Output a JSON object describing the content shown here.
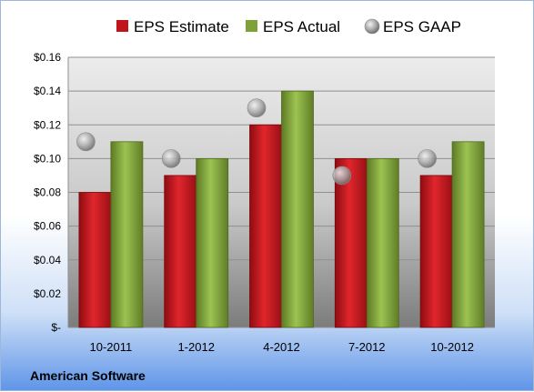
{
  "chart_data": {
    "type": "bar",
    "title": "",
    "xlabel": "",
    "ylabel": "",
    "categories": [
      "10-2011",
      "1-2012",
      "4-2012",
      "7-2012",
      "10-2012"
    ],
    "series": [
      {
        "name": "EPS Estimate",
        "type": "bar",
        "color": "#c0151c",
        "values": [
          0.08,
          0.09,
          0.12,
          0.1,
          0.09
        ]
      },
      {
        "name": "EPS Actual",
        "type": "bar",
        "color": "#7fa13a",
        "values": [
          0.11,
          0.1,
          0.14,
          0.1,
          0.11
        ]
      },
      {
        "name": "EPS GAAP",
        "type": "scatter",
        "color": "#a6a6a6",
        "values": [
          0.11,
          0.1,
          0.13,
          0.09,
          0.1
        ]
      }
    ],
    "ylim": [
      0,
      0.16
    ],
    "yticks": [
      0,
      0.02,
      0.04,
      0.06,
      0.08,
      0.1,
      0.12,
      0.14,
      0.16
    ],
    "ytick_labels": [
      "$-",
      "$0.02",
      "$0.04",
      "$0.06",
      "$0.08",
      "$0.10",
      "$0.12",
      "$0.14",
      "$0.16"
    ],
    "grid": true,
    "legend_position": "top",
    "company": "American Software"
  }
}
